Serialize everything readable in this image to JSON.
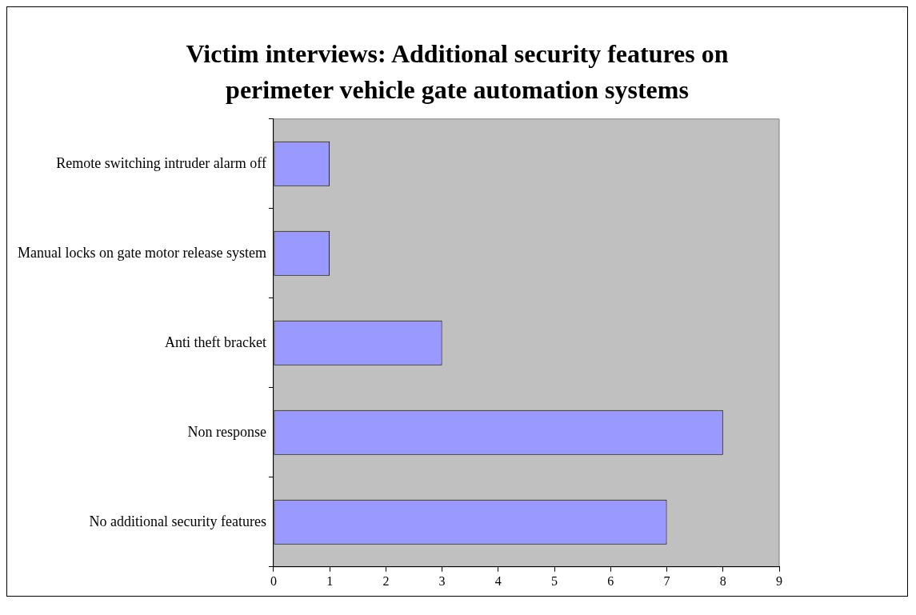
{
  "chart_data": {
    "type": "bar",
    "orientation": "horizontal",
    "title": "Victim interviews:  Additional security features on perimeter vehicle gate automation systems",
    "categories": [
      "Remote switching intruder alarm off",
      "Manual locks on gate motor release system",
      "Anti theft bracket",
      "Non response",
      "No additional security features"
    ],
    "values": [
      1,
      1,
      3,
      8,
      7
    ],
    "color": "#9999ff",
    "xlim": [
      0,
      9
    ],
    "xticks": [
      0,
      1,
      2,
      3,
      4,
      5,
      6,
      7,
      8,
      9
    ],
    "grid": false,
    "legend": false
  }
}
